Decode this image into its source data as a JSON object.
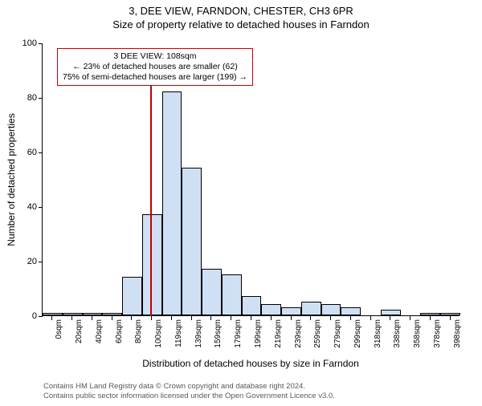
{
  "titles": {
    "main": "3, DEE VIEW, FARNDON, CHESTER, CH3 6PR",
    "sub": "Size of property relative to detached houses in Farndon"
  },
  "chart": {
    "type": "histogram",
    "y_axis": {
      "label": "Number of detached properties",
      "min": 0,
      "max": 100,
      "tick_step": 20,
      "ticks": [
        0,
        20,
        40,
        60,
        80,
        100
      ]
    },
    "x_axis": {
      "label": "Distribution of detached houses by size in Farndon",
      "categories": [
        "0sqm",
        "20sqm",
        "40sqm",
        "60sqm",
        "80sqm",
        "100sqm",
        "119sqm",
        "139sqm",
        "159sqm",
        "179sqm",
        "199sqm",
        "219sqm",
        "239sqm",
        "259sqm",
        "279sqm",
        "299sqm",
        "318sqm",
        "338sqm",
        "358sqm",
        "378sqm",
        "398sqm"
      ]
    },
    "bars": {
      "values": [
        1,
        1,
        1,
        1,
        14,
        37,
        82,
        54,
        17,
        15,
        7,
        4,
        3,
        5,
        4,
        3,
        0,
        2,
        0,
        1,
        1
      ],
      "fill_color": "#cfe0f5",
      "border_color": "#000000",
      "width_ratio": 1.0
    },
    "marker": {
      "index": 5,
      "color": "#c00000",
      "label_lines": [
        "3 DEE VIEW: 108sqm",
        "← 23% of detached houses are smaller (62)",
        "75% of semi-detached houses are larger (199) →"
      ]
    },
    "background_color": "#ffffff"
  },
  "attribution": {
    "line1": "Contains HM Land Registry data © Crown copyright and database right 2024.",
    "line2": "Contains public sector information licensed under the Open Government Licence v3.0."
  },
  "fonts": {
    "title_size_pt": 10,
    "label_size_pt": 9,
    "tick_size_pt": 8,
    "annot_size_pt": 8,
    "attrib_size_pt": 7
  }
}
